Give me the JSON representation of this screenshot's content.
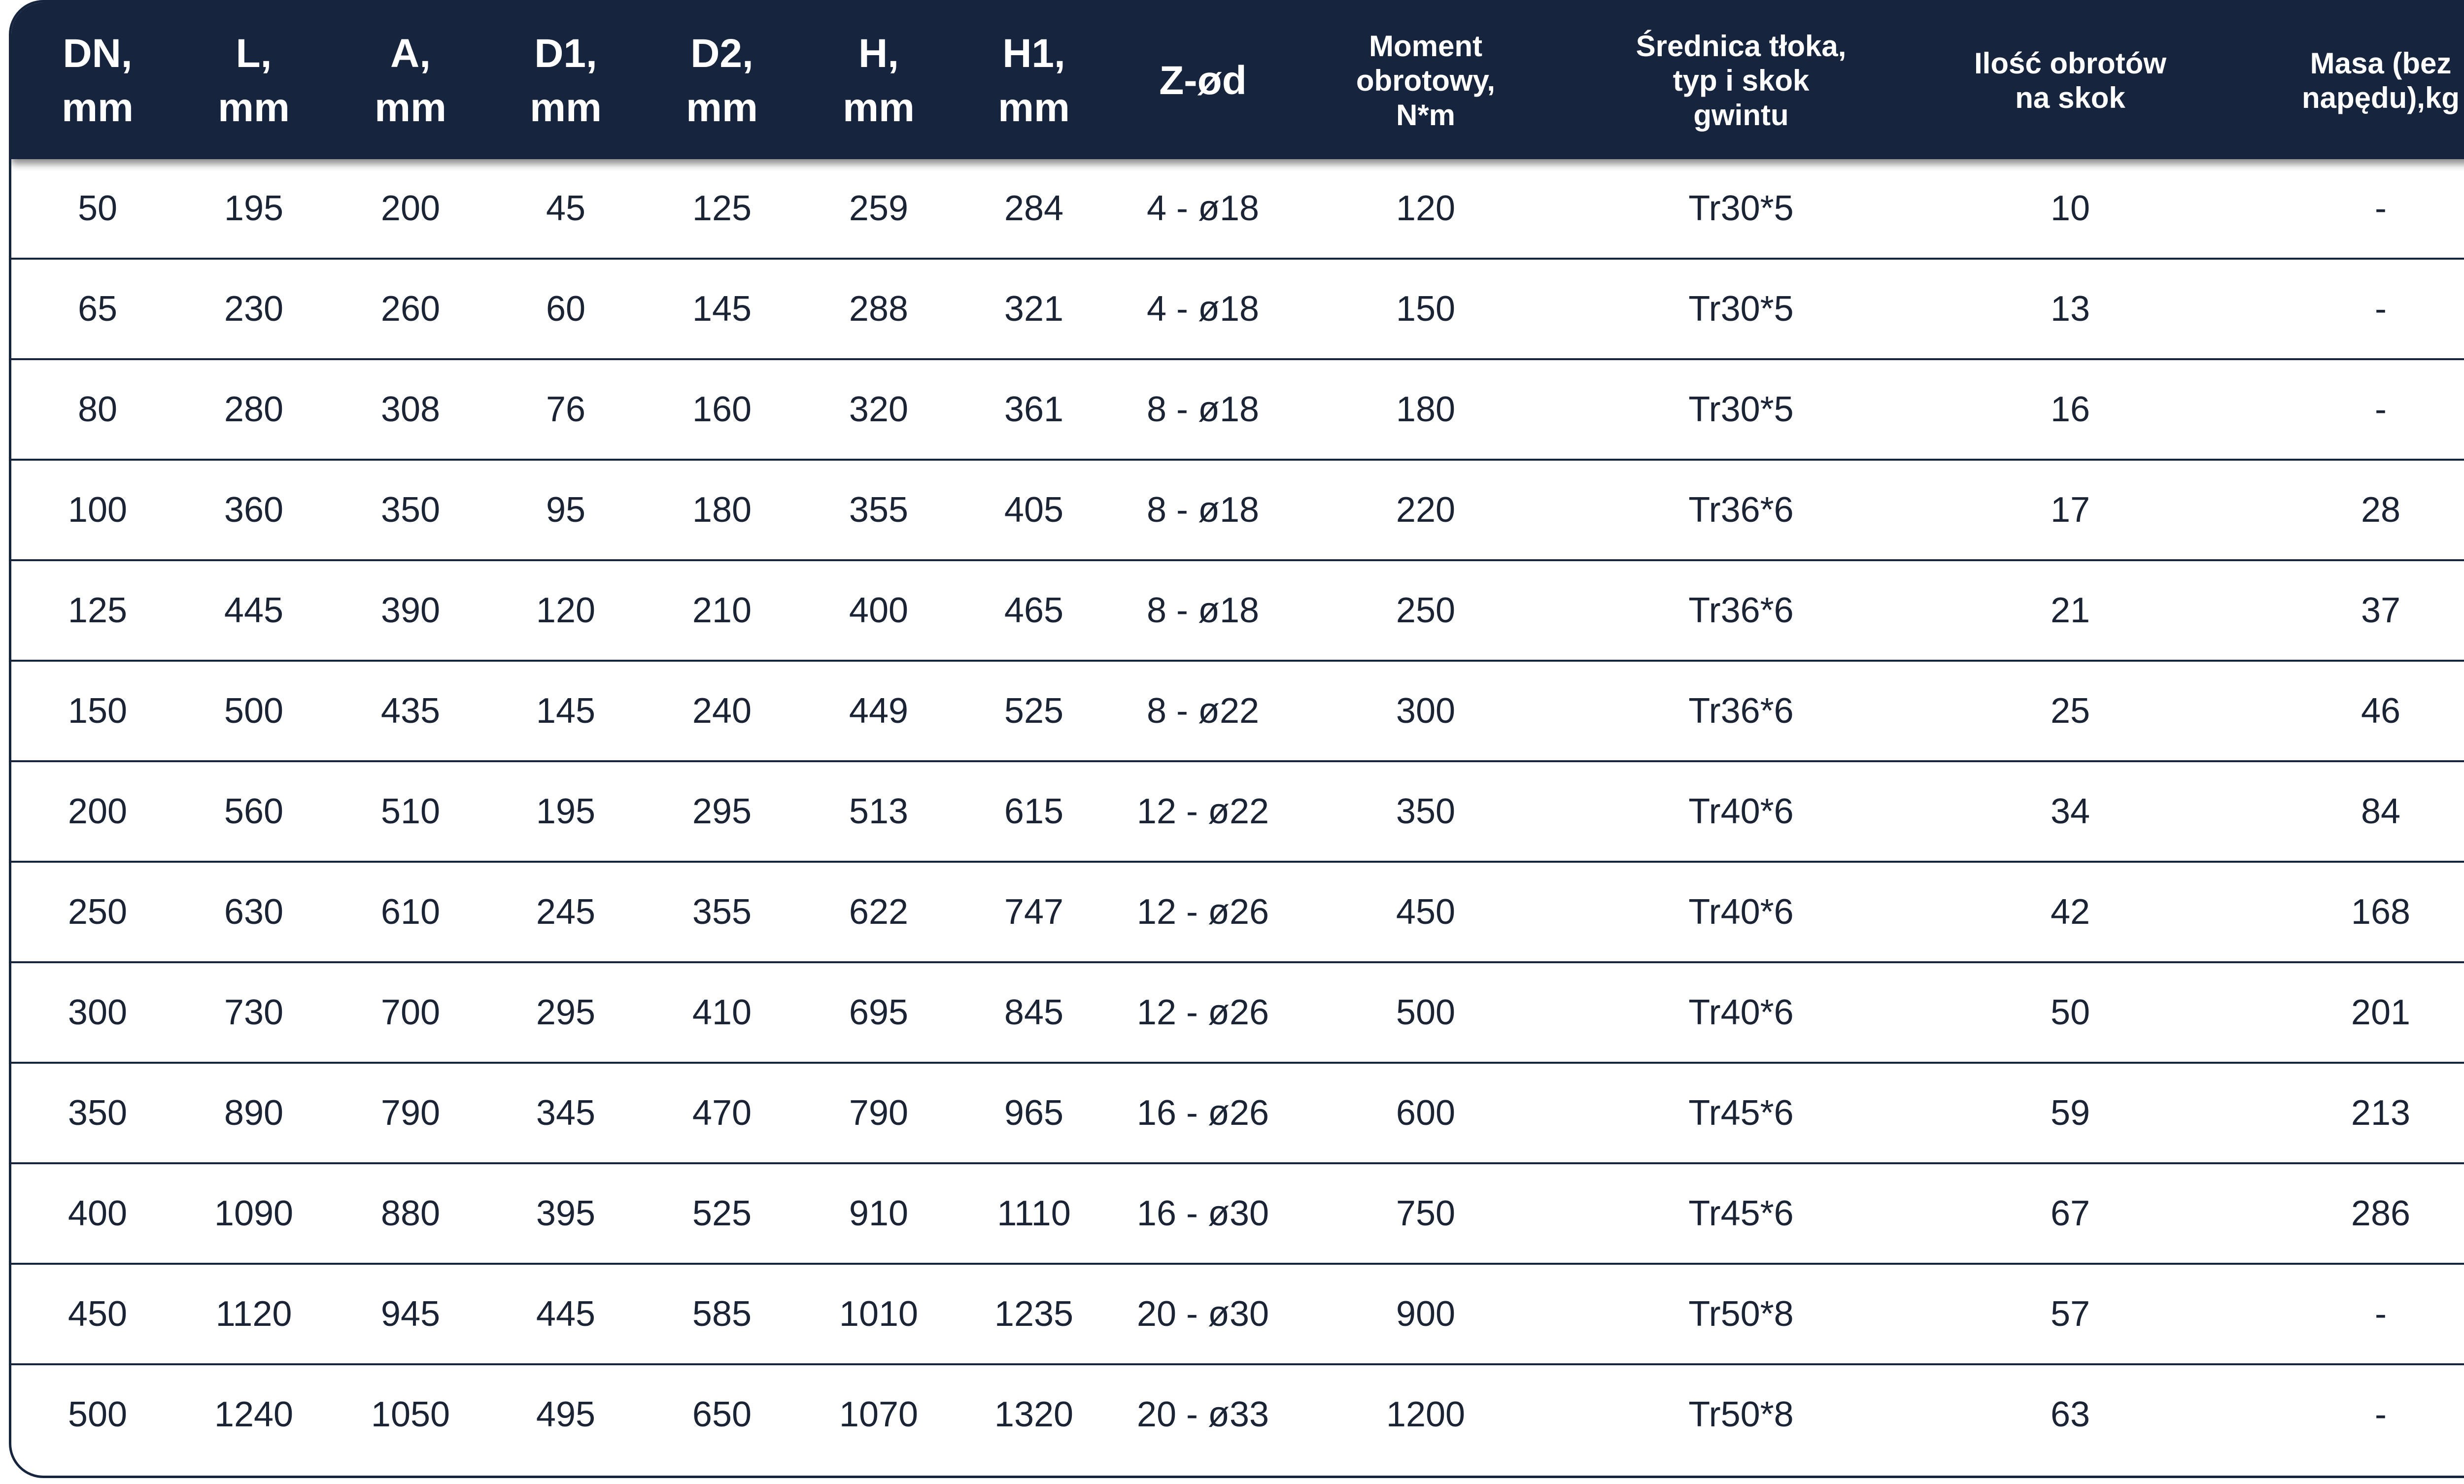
{
  "table": {
    "headers": [
      "DN,\nmm",
      "L,\nmm",
      "A,\nmm",
      "D1,\nmm",
      "D2,\nmm",
      "H,\nmm",
      "H1,\nmm",
      "Z-ød",
      "Moment\nobrotowy,\nN*m",
      "Średnica tłoka,\ntyp i skok\ngwintu",
      "Ilość obrotów\nna skok",
      "Masa (bez\nnapędu),kg"
    ],
    "rows": [
      [
        "50",
        "195",
        "200",
        "45",
        "125",
        "259",
        "284",
        "4 - ø18",
        "120",
        "Tr30*5",
        "10",
        "-"
      ],
      [
        "65",
        "230",
        "260",
        "60",
        "145",
        "288",
        "321",
        "4 - ø18",
        "150",
        "Tr30*5",
        "13",
        "-"
      ],
      [
        "80",
        "280",
        "308",
        "76",
        "160",
        "320",
        "361",
        "8 - ø18",
        "180",
        "Tr30*5",
        "16",
        "-"
      ],
      [
        "100",
        "360",
        "350",
        "95",
        "180",
        "355",
        "405",
        "8 - ø18",
        "220",
        "Tr36*6",
        "17",
        "28"
      ],
      [
        "125",
        "445",
        "390",
        "120",
        "210",
        "400",
        "465",
        "8 - ø18",
        "250",
        "Tr36*6",
        "21",
        "37"
      ],
      [
        "150",
        "500",
        "435",
        "145",
        "240",
        "449",
        "525",
        "8 - ø22",
        "300",
        "Tr36*6",
        "25",
        "46"
      ],
      [
        "200",
        "560",
        "510",
        "195",
        "295",
        "513",
        "615",
        "12 - ø22",
        "350",
        "Tr40*6",
        "34",
        "84"
      ],
      [
        "250",
        "630",
        "610",
        "245",
        "355",
        "622",
        "747",
        "12 - ø26",
        "450",
        "Tr40*6",
        "42",
        "168"
      ],
      [
        "300",
        "730",
        "700",
        "295",
        "410",
        "695",
        "845",
        "12 - ø26",
        "500",
        "Tr40*6",
        "50",
        "201"
      ],
      [
        "350",
        "890",
        "790",
        "345",
        "470",
        "790",
        "965",
        "16 - ø26",
        "600",
        "Tr45*6",
        "59",
        "213"
      ],
      [
        "400",
        "1090",
        "880",
        "395",
        "525",
        "910",
        "1110",
        "16 - ø30",
        "750",
        "Tr45*6",
        "67",
        "286"
      ],
      [
        "450",
        "1120",
        "945",
        "445",
        "585",
        "1010",
        "1235",
        "20 - ø30",
        "900",
        "Tr50*8",
        "57",
        "-"
      ],
      [
        "500",
        "1240",
        "1050",
        "495",
        "650",
        "1070",
        "1320",
        "20 - ø33",
        "1200",
        "Tr50*8",
        "63",
        "-"
      ]
    ]
  },
  "colors": {
    "header_background": "#16253d",
    "header_text": "#ffffff",
    "cell_text": "#1b2434",
    "row_divider": "#16253d"
  }
}
